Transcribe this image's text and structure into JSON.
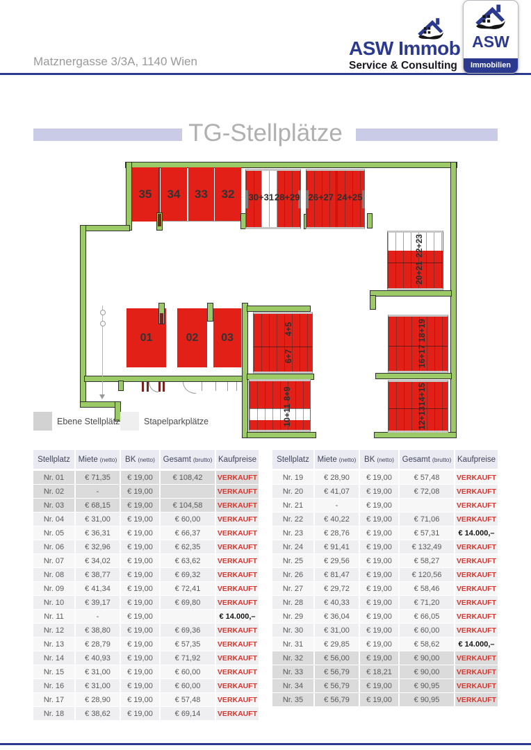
{
  "header": {
    "address": "Matznergasse 3/3A, 1140 Wien",
    "logo": {
      "line1": "ASW Immob",
      "line2": "Service & Consulting",
      "card_title": "ASW",
      "card_subtitle": "Immobilien"
    }
  },
  "title": "TG-Stellplätze",
  "floorplan": {
    "colors": {
      "spot_red": "#e32017",
      "wall_green": "#9cca66"
    },
    "labels": {
      "s35": "35",
      "s34": "34",
      "s33": "33",
      "s32": "32",
      "s3031": "30+31",
      "s2829": "28+29",
      "s2627": "26+27",
      "s2425": "24+25",
      "s2223": "22+23",
      "s2021": "20+21",
      "s01": "01",
      "s02": "02",
      "s03": "03",
      "s45": "4+5",
      "s67": "6+7",
      "s89": "8+9",
      "s1011": "10+11",
      "s1819": "18+19",
      "s1617": "16+17",
      "s1415": "14+15",
      "s1213": "12+13"
    }
  },
  "legend": {
    "items": [
      {
        "label": "Ebene Stellplätze",
        "color": "#d2d2d2"
      },
      {
        "label": "Stapelparkplätze",
        "color": "#efefef"
      }
    ]
  },
  "table": {
    "columns": [
      {
        "label": "Stellplatz",
        "sub": ""
      },
      {
        "label": "Miete",
        "sub": "(netto)"
      },
      {
        "label": "BK",
        "sub": "(netto)"
      },
      {
        "label": "Gesamt",
        "sub": "(brutto)"
      },
      {
        "label": "Kaufpreise",
        "sub": ""
      }
    ],
    "left_rows": [
      {
        "nr": "Nr. 01",
        "miete": "€ 71,35",
        "bk": "€ 19,00",
        "gesamt": "€ 108,42",
        "kauf": "VERKAUFT",
        "kauf_style": "sold",
        "row_style": "ebene"
      },
      {
        "nr": "Nr. 02",
        "miete": "-",
        "bk": "€ 19,00",
        "gesamt": "",
        "kauf": "VERKAUFT",
        "kauf_style": "sold",
        "row_style": "ebene"
      },
      {
        "nr": "Nr. 03",
        "miete": "€ 68,15",
        "bk": "€ 19,00",
        "gesamt": "€ 104,58",
        "kauf": "VERKAUFT",
        "kauf_style": "sold",
        "row_style": "ebene"
      },
      {
        "nr": "Nr. 04",
        "miete": "€ 31,00",
        "bk": "€ 19,00",
        "gesamt": "€ 60,00",
        "kauf": "VERKAUFT",
        "kauf_style": "sold",
        "row_style": ""
      },
      {
        "nr": "Nr. 05",
        "miete": "€ 36,31",
        "bk": "€ 19,00",
        "gesamt": "€ 66,37",
        "kauf": "VERKAUFT",
        "kauf_style": "sold",
        "row_style": ""
      },
      {
        "nr": "Nr. 06",
        "miete": "€ 32,96",
        "bk": "€ 19,00",
        "gesamt": "€ 62,35",
        "kauf": "VERKAUFT",
        "kauf_style": "sold",
        "row_style": ""
      },
      {
        "nr": "Nr. 07",
        "miete": "€ 34,02",
        "bk": "€ 19,00",
        "gesamt": "€ 63,62",
        "kauf": "VERKAUFT",
        "kauf_style": "sold",
        "row_style": ""
      },
      {
        "nr": "Nr. 08",
        "miete": "€ 38,77",
        "bk": "€ 19,00",
        "gesamt": "€ 69,32",
        "kauf": "VERKAUFT",
        "kauf_style": "sold",
        "row_style": ""
      },
      {
        "nr": "Nr. 09",
        "miete": "€ 41,34",
        "bk": "€ 19,00",
        "gesamt": "€ 72,41",
        "kauf": "VERKAUFT",
        "kauf_style": "sold",
        "row_style": ""
      },
      {
        "nr": "Nr. 10",
        "miete": "€ 39,17",
        "bk": "€ 19,00",
        "gesamt": "€ 69,80",
        "kauf": "VERKAUFT",
        "kauf_style": "sold",
        "row_style": ""
      },
      {
        "nr": "Nr. 11",
        "miete": "-",
        "bk": "€ 19,00",
        "gesamt": "",
        "kauf": "€ 14.000,–",
        "kauf_style": "price",
        "row_style": ""
      },
      {
        "nr": "Nr. 12",
        "miete": "€ 38,80",
        "bk": "€ 19,00",
        "gesamt": "€ 69,36",
        "kauf": "VERKAUFT",
        "kauf_style": "sold",
        "row_style": ""
      },
      {
        "nr": "Nr. 13",
        "miete": "€ 28,79",
        "bk": "€ 19,00",
        "gesamt": "€ 57,35",
        "kauf": "VERKAUFT",
        "kauf_style": "sold",
        "row_style": ""
      },
      {
        "nr": "Nr. 14",
        "miete": "€ 40,93",
        "bk": "€ 19,00",
        "gesamt": "€ 71,92",
        "kauf": "VERKAUFT",
        "kauf_style": "sold",
        "row_style": ""
      },
      {
        "nr": "Nr. 15",
        "miete": "€ 31,00",
        "bk": "€ 19,00",
        "gesamt": "€ 60,00",
        "kauf": "VERKAUFT",
        "kauf_style": "sold",
        "row_style": ""
      },
      {
        "nr": "Nr. 16",
        "miete": "€ 31,00",
        "bk": "€ 19,00",
        "gesamt": "€ 60,00",
        "kauf": "VERKAUFT",
        "kauf_style": "sold",
        "row_style": ""
      },
      {
        "nr": "Nr. 17",
        "miete": "€ 28,90",
        "bk": "€ 19,00",
        "gesamt": "€ 57,48",
        "kauf": "VERKAUFT",
        "kauf_style": "sold",
        "row_style": ""
      },
      {
        "nr": "Nr. 18",
        "miete": "€ 38,62",
        "bk": "€ 19,00",
        "gesamt": "€ 69,14",
        "kauf": "VERKAUFT",
        "kauf_style": "sold",
        "row_style": ""
      }
    ],
    "right_rows": [
      {
        "nr": "Nr. 19",
        "miete": "€ 28,90",
        "bk": "€ 19,00",
        "gesamt": "€ 57,48",
        "kauf": "VERKAUFT",
        "kauf_style": "sold",
        "row_style": ""
      },
      {
        "nr": "Nr. 20",
        "miete": "€ 41,07",
        "bk": "€ 19,00",
        "gesamt": "€ 72,08",
        "kauf": "VERKAUFT",
        "kauf_style": "sold",
        "row_style": ""
      },
      {
        "nr": "Nr. 21",
        "miete": "-",
        "bk": "€ 19,00",
        "gesamt": "",
        "kauf": "VERKAUFT",
        "kauf_style": "sold",
        "row_style": ""
      },
      {
        "nr": "Nr. 22",
        "miete": "€ 40,22",
        "bk": "€ 19,00",
        "gesamt": "€ 71,06",
        "kauf": "VERKAUFT",
        "kauf_style": "sold",
        "row_style": ""
      },
      {
        "nr": "Nr. 23",
        "miete": "€ 28,76",
        "bk": "€ 19,00",
        "gesamt": "€ 57,31",
        "kauf": "€ 14.000,–",
        "kauf_style": "price",
        "row_style": ""
      },
      {
        "nr": "Nr. 24",
        "miete": "€ 91,41",
        "bk": "€ 19,00",
        "gesamt": "€ 132,49",
        "kauf": "VERKAUFT",
        "kauf_style": "sold",
        "row_style": ""
      },
      {
        "nr": "Nr. 25",
        "miete": "€ 29,56",
        "bk": "€ 19,00",
        "gesamt": "€ 58,27",
        "kauf": "VERKAUFT",
        "kauf_style": "sold",
        "row_style": ""
      },
      {
        "nr": "Nr. 26",
        "miete": "€ 81,47",
        "bk": "€ 19,00",
        "gesamt": "€ 120,56",
        "kauf": "VERKAUFT",
        "kauf_style": "sold",
        "row_style": ""
      },
      {
        "nr": "Nr. 27",
        "miete": "€ 29,72",
        "bk": "€ 19,00",
        "gesamt": "€ 58,46",
        "kauf": "VERKAUFT",
        "kauf_style": "sold",
        "row_style": ""
      },
      {
        "nr": "Nr. 28",
        "miete": "€ 40,33",
        "bk": "€ 19,00",
        "gesamt": "€ 71,20",
        "kauf": "VERKAUFT",
        "kauf_style": "sold",
        "row_style": ""
      },
      {
        "nr": "Nr. 29",
        "miete": "€ 36,04",
        "bk": "€ 19,00",
        "gesamt": "€ 66,05",
        "kauf": "VERKAUFT",
        "kauf_style": "sold",
        "row_style": ""
      },
      {
        "nr": "Nr. 30",
        "miete": "€ 31,00",
        "bk": "€ 19,00",
        "gesamt": "€ 60,00",
        "kauf": "VERKAUFT",
        "kauf_style": "sold",
        "row_style": ""
      },
      {
        "nr": "Nr. 31",
        "miete": "€ 29,85",
        "bk": "€ 19,00",
        "gesamt": "€ 58,62",
        "kauf": "€ 14.000,–",
        "kauf_style": "price",
        "row_style": ""
      },
      {
        "nr": "Nr. 32",
        "miete": "€ 56,00",
        "bk": "€ 19,00",
        "gesamt": "€ 90,00",
        "kauf": "VERKAUFT",
        "kauf_style": "sold",
        "row_style": "ebene"
      },
      {
        "nr": "Nr. 33",
        "miete": "€ 56,79",
        "bk": "€ 18,21",
        "gesamt": "€ 90,00",
        "kauf": "VERKAUFT",
        "kauf_style": "sold",
        "row_style": "ebene"
      },
      {
        "nr": "Nr. 34",
        "miete": "€ 56,79",
        "bk": "€ 19,00",
        "gesamt": "€ 90,95",
        "kauf": "VERKAUFT",
        "kauf_style": "sold",
        "row_style": "ebene"
      },
      {
        "nr": "Nr. 35",
        "miete": "€ 56,79",
        "bk": "€ 19,00",
        "gesamt": "€ 90,95",
        "kauf": "VERKAUFT",
        "kauf_style": "sold",
        "row_style": "ebene"
      }
    ]
  }
}
